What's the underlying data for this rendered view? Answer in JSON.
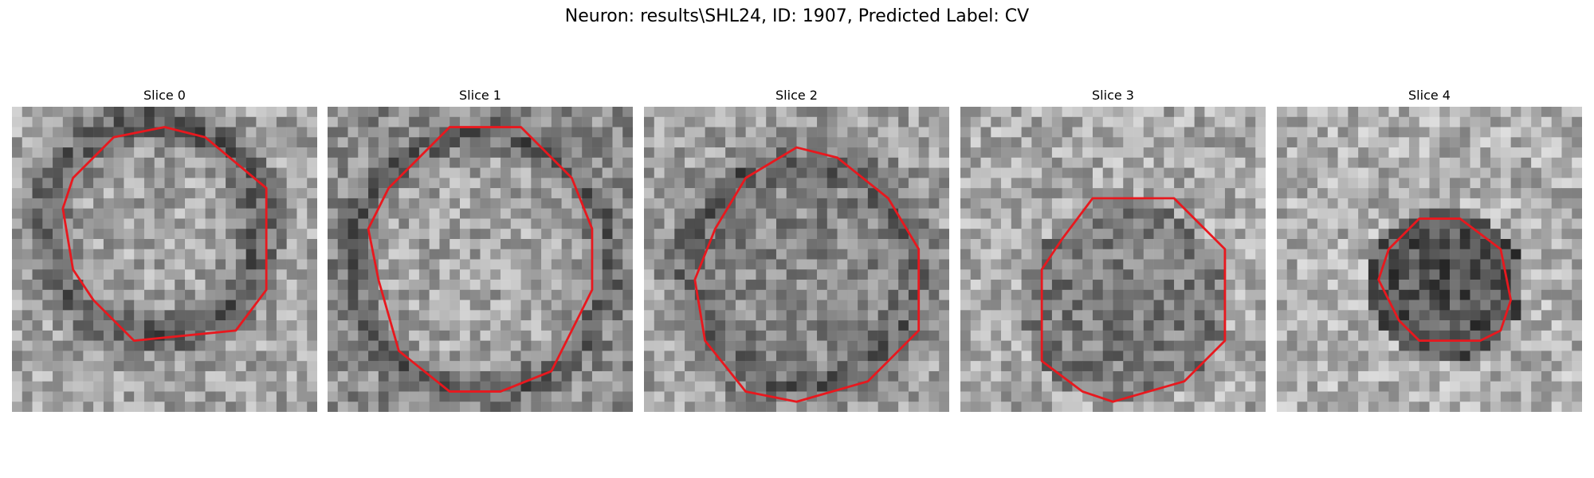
{
  "title": "Neuron: results\\SHL24, ID: 1907, Predicted Label: CV",
  "contour_color": "#e8181e",
  "slices": [
    {
      "label": "Slice 0",
      "grid": 30,
      "contrast": "dark-ring",
      "contour": [
        [
          15,
          2
        ],
        [
          19,
          3
        ],
        [
          25,
          8
        ],
        [
          25,
          18
        ],
        [
          22,
          22
        ],
        [
          12,
          23
        ],
        [
          8,
          19
        ],
        [
          6,
          16
        ],
        [
          5,
          10
        ],
        [
          6,
          7
        ],
        [
          10,
          3
        ]
      ]
    },
    {
      "label": "Slice 1",
      "grid": 30,
      "contrast": "light-interior",
      "contour": [
        [
          12,
          2
        ],
        [
          19,
          2
        ],
        [
          24,
          7
        ],
        [
          26,
          12
        ],
        [
          26,
          18
        ],
        [
          22,
          26
        ],
        [
          17,
          28
        ],
        [
          12,
          28
        ],
        [
          7,
          24
        ],
        [
          5,
          17
        ],
        [
          4,
          12
        ],
        [
          6,
          8
        ]
      ]
    },
    {
      "label": "Slice 2",
      "grid": 30,
      "contrast": "dark-border",
      "contour": [
        [
          15,
          4
        ],
        [
          19,
          5
        ],
        [
          24,
          9
        ],
        [
          27,
          14
        ],
        [
          27,
          22
        ],
        [
          22,
          27
        ],
        [
          15,
          29
        ],
        [
          10,
          28
        ],
        [
          6,
          23
        ],
        [
          5,
          17
        ],
        [
          7,
          12
        ],
        [
          10,
          7
        ]
      ]
    },
    {
      "label": "Slice 3",
      "grid": 30,
      "contrast": "speckle",
      "contour": [
        [
          13,
          9
        ],
        [
          21,
          9
        ],
        [
          26,
          14
        ],
        [
          26,
          23
        ],
        [
          22,
          27
        ],
        [
          15,
          29
        ],
        [
          12,
          28
        ],
        [
          8,
          25
        ],
        [
          8,
          16
        ],
        [
          10,
          13
        ]
      ]
    },
    {
      "label": "Slice 4",
      "grid": 30,
      "contrast": "dark-blob",
      "contour": [
        [
          14,
          11
        ],
        [
          18,
          11
        ],
        [
          22,
          14
        ],
        [
          23,
          19
        ],
        [
          22,
          22
        ],
        [
          20,
          23
        ],
        [
          14,
          23
        ],
        [
          12,
          21
        ],
        [
          10,
          17
        ],
        [
          11,
          14
        ]
      ]
    }
  ]
}
